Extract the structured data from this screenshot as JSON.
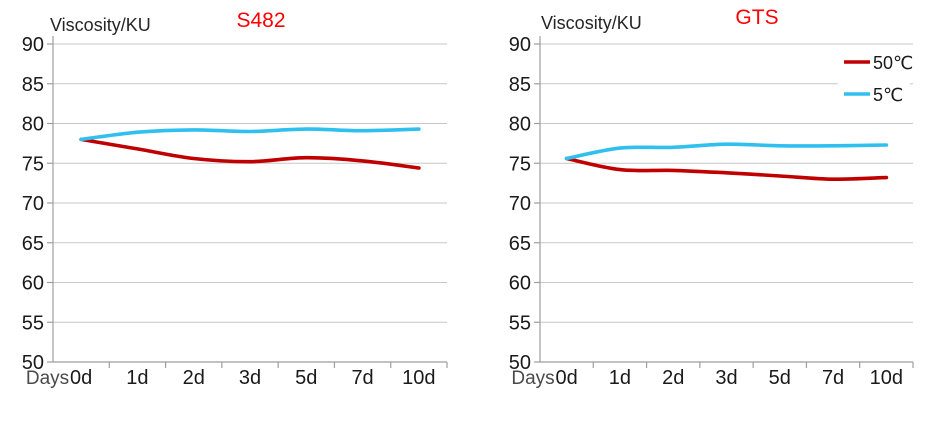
{
  "figure": {
    "background": "#ffffff",
    "left_chart_title": "S482",
    "right_chart_title": "GTS"
  },
  "colors": {
    "series_50c": "#c00000",
    "series_5c": "#30c0f0",
    "title_red": "#ff0000",
    "gridline": "#c7c7c7",
    "axis": "#9e9e9e",
    "tick_label": "#1a1a1a"
  },
  "chart_data": [
    {
      "type": "line",
      "title": "S482",
      "title_color": "#ff0000",
      "unit_label": "Viscosity/KU",
      "x_axis_label": "Days",
      "categories": [
        "0d",
        "1d",
        "2d",
        "3d",
        "5d",
        "7d",
        "10d"
      ],
      "ylim": [
        50,
        90
      ],
      "ytick_step": 5,
      "ytick_labels": [
        "50",
        "55",
        "60",
        "65",
        "70",
        "75",
        "80",
        "85",
        "90"
      ],
      "grid": "horizontal",
      "legend": {
        "visible": false,
        "position": "top-right",
        "entries": []
      },
      "series": [
        {
          "name": "50℃",
          "color": "#c00000",
          "values": [
            78.0,
            76.8,
            75.6,
            75.2,
            75.7,
            75.3,
            74.4
          ]
        },
        {
          "name": "5℃",
          "color": "#30c0f0",
          "values": [
            78.0,
            78.9,
            79.2,
            79.0,
            79.3,
            79.1,
            79.3
          ]
        }
      ]
    },
    {
      "type": "line",
      "title": "GTS",
      "title_color": "#ff0000",
      "unit_label": "Viscosity/KU",
      "x_axis_label": "Days",
      "categories": [
        "0d",
        "1d",
        "2d",
        "3d",
        "5d",
        "7d",
        "10d"
      ],
      "ylim": [
        50,
        90
      ],
      "ytick_step": 5,
      "ytick_labels": [
        "50",
        "55",
        "60",
        "65",
        "70",
        "75",
        "80",
        "85",
        "90"
      ],
      "grid": "horizontal",
      "legend": {
        "visible": true,
        "position": "top-right",
        "entries": [
          "50℃",
          "5℃"
        ]
      },
      "series": [
        {
          "name": "50℃",
          "color": "#c00000",
          "values": [
            75.6,
            74.2,
            74.1,
            73.8,
            73.4,
            73.0,
            73.2
          ]
        },
        {
          "name": "5℃",
          "color": "#30c0f0",
          "values": [
            75.6,
            76.9,
            77.0,
            77.4,
            77.2,
            77.2,
            77.3
          ]
        }
      ]
    }
  ]
}
